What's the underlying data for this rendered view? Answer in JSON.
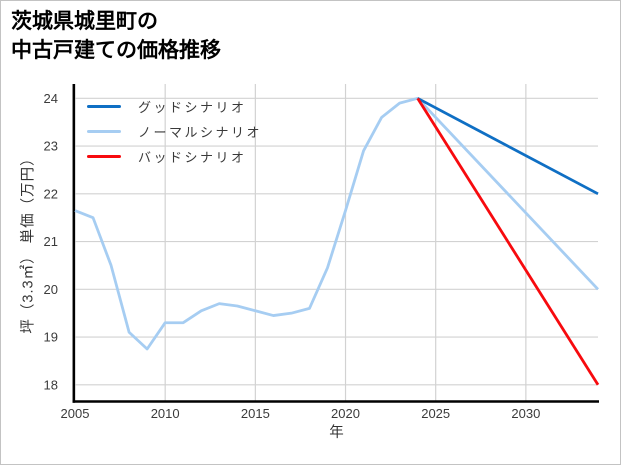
{
  "page": {
    "title_line1": "茨城県城里町の",
    "title_line2": "中古戸建ての価格推移"
  },
  "chart_data": {
    "type": "line",
    "title": "茨城県城里町の中古戸建ての価格推移",
    "title_lines": [
      "茨城県城里町の",
      "中古戸建ての価格推移"
    ],
    "xlabel": "年",
    "ylabel": "坪（3.3㎡） 単価（万円）",
    "xlim": [
      2005,
      2034
    ],
    "ylim": [
      17.65,
      24.3
    ],
    "xticks": [
      "2005",
      "2010",
      "2015",
      "2020",
      "2025",
      "2030"
    ],
    "yticks": [
      "18",
      "19",
      "20",
      "21",
      "22",
      "23",
      "24"
    ],
    "grid": true,
    "legend": {
      "position": "upper left",
      "frame": false
    },
    "axis_colors": {
      "grid": "#d2d2d2",
      "spine": "#000000",
      "tick_label": "#3b3b3b"
    },
    "series": [
      {
        "id": "good",
        "name": "グッドシナリオ",
        "color": "#0f6fc4",
        "x": [
          2024,
          2034
        ],
        "y": [
          24.0,
          22.0
        ]
      },
      {
        "id": "normal",
        "name": "ノーマルシナリオ",
        "color": "#a6cdf2",
        "x": [
          2005,
          2006,
          2007,
          2008,
          2009,
          2010,
          2011,
          2012,
          2013,
          2014,
          2015,
          2016,
          2017,
          2018,
          2019,
          2020,
          2021,
          2022,
          2023,
          2024,
          2034
        ],
        "y": [
          21.65,
          21.5,
          20.5,
          19.1,
          18.75,
          19.3,
          19.3,
          19.55,
          19.7,
          19.65,
          19.55,
          19.45,
          19.5,
          19.6,
          20.45,
          21.65,
          22.9,
          23.6,
          23.9,
          24.0,
          20.0
        ]
      },
      {
        "id": "bad",
        "name": "バッドシナリオ",
        "color": "#f70a0e",
        "x": [
          2024,
          2034
        ],
        "y": [
          24.0,
          18.0
        ]
      }
    ]
  }
}
